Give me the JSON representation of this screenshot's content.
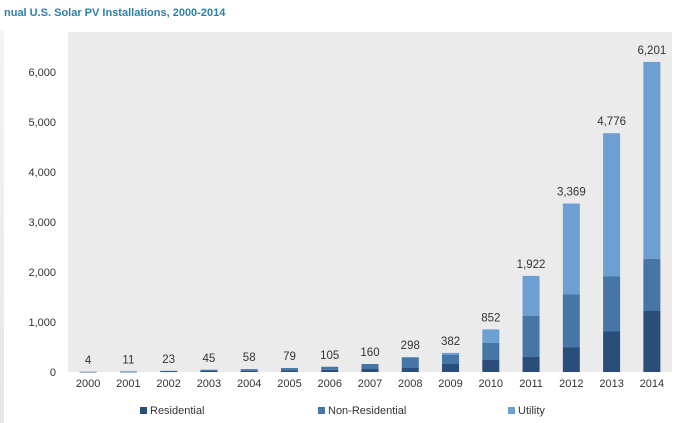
{
  "chart_data": {
    "type": "bar",
    "stacked": true,
    "title": "nual U.S. Solar PV Installations, 2000-2014",
    "categories": [
      "2000",
      "2001",
      "2002",
      "2003",
      "2004",
      "2005",
      "2006",
      "2007",
      "2008",
      "2009",
      "2010",
      "2011",
      "2012",
      "2013",
      "2014"
    ],
    "totals": [
      4,
      11,
      23,
      45,
      58,
      79,
      105,
      160,
      298,
      382,
      852,
      1922,
      3369,
      4776,
      6201
    ],
    "total_labels": [
      "4",
      "11",
      "23",
      "45",
      "58",
      "79",
      "105",
      "160",
      "298",
      "382",
      "852",
      "1,922",
      "3,369",
      "4,776",
      "6,201"
    ],
    "series": [
      {
        "name": "Residential",
        "color": "#2a4d7a",
        "values": [
          2,
          5,
          10,
          20,
          26,
          36,
          45,
          60,
          80,
          160,
          240,
          300,
          490,
          810,
          1220
        ]
      },
      {
        "name": "Non-Residential",
        "color": "#4576a6",
        "values": [
          2,
          6,
          13,
          25,
          32,
          43,
          60,
          100,
          210,
          180,
          340,
          820,
          1060,
          1100,
          1040
        ]
      },
      {
        "name": "Utility",
        "color": "#6e9fd2",
        "values": [
          0,
          0,
          0,
          0,
          0,
          0,
          0,
          0,
          8,
          42,
          272,
          802,
          1819,
          2866,
          3941
        ]
      }
    ],
    "ylim": [
      0,
      6000
    ],
    "yticks": [
      0,
      1000,
      2000,
      3000,
      4000,
      5000,
      6000
    ],
    "ytick_labels": [
      "0",
      "1,000",
      "2,000",
      "3,000",
      "4,000",
      "5,000",
      "6,000"
    ],
    "legend_position": "bottom",
    "plot_background": "#ebebeb"
  }
}
